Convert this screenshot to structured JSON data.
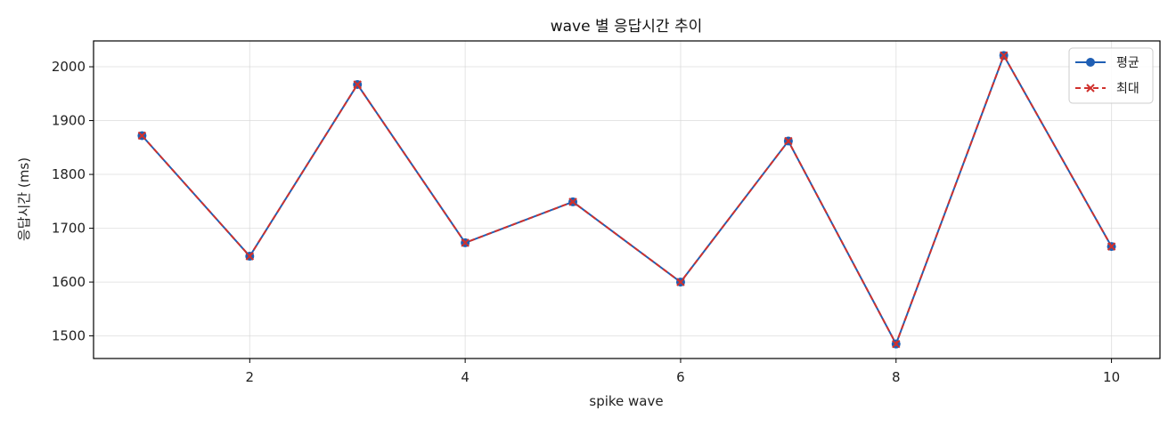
{
  "chart_data": {
    "type": "line",
    "title": "wave 별 응답시간 추이",
    "xlabel": "spike wave",
    "ylabel": "응답시간 (ms)",
    "x": [
      1,
      2,
      3,
      4,
      5,
      6,
      7,
      8,
      9,
      10
    ],
    "xlim": [
      0.55,
      10.45
    ],
    "ylim": [
      1458,
      2048
    ],
    "xticks": [
      2,
      4,
      6,
      8,
      10
    ],
    "yticks": [
      1500,
      1600,
      1700,
      1800,
      1900,
      2000
    ],
    "grid": true,
    "legend_position": "top-right",
    "series": [
      {
        "name": "평균",
        "values": [
          1872,
          1648,
          1967,
          1673,
          1749,
          1600,
          1862,
          1485,
          2021,
          1666
        ],
        "color": "#1f5fb4",
        "marker": "circle",
        "linestyle": "solid"
      },
      {
        "name": "최대",
        "values": [
          1872,
          1648,
          1967,
          1673,
          1749,
          1600,
          1862,
          1485,
          2021,
          1666
        ],
        "color": "#d0312d",
        "marker": "x",
        "linestyle": "dashed"
      }
    ]
  }
}
